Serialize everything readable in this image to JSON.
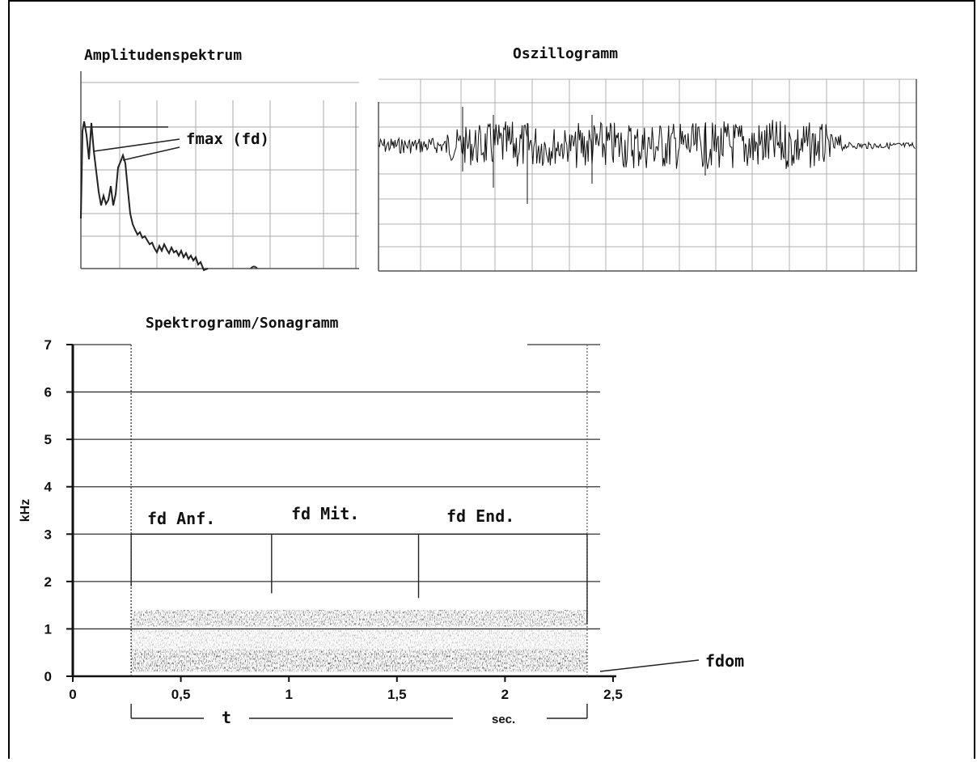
{
  "panels": {
    "amplitude_title": "Amplitudenspektrum",
    "oscillogram_title": "Oszillogramm",
    "spectrogram_title": "Spektrogramm/Sonagramm"
  },
  "annotations": {
    "fmax": "fmax (fd)",
    "fd_start": "fd Anf.",
    "fd_mid": "fd Mit.",
    "fd_end": "fd End.",
    "fdom": "fdom",
    "time_symbol": "t",
    "time_unit": "sec."
  },
  "chart_data": {
    "type": "heatmap",
    "title": "Spektrogramm/Sonagramm",
    "ylabel": "kHz",
    "xlabel": "",
    "ylim": [
      0,
      7
    ],
    "xlim": [
      0,
      2.5
    ],
    "y_ticks": [
      "0",
      "1",
      "2",
      "3",
      "4",
      "5",
      "6",
      "7"
    ],
    "x_ticks": [
      "0",
      "0,5",
      "1",
      "1,5",
      "2",
      "2,5"
    ],
    "y_tick_values": [
      0,
      1,
      2,
      3,
      4,
      5,
      6,
      7
    ],
    "x_tick_values": [
      0,
      0.5,
      1,
      1.5,
      2,
      2.5
    ],
    "grid": true,
    "call_start_s": 0.27,
    "call_end_s": 2.38,
    "measure_times_s": [
      0.27,
      0.92,
      1.6,
      2.38
    ],
    "bands_khz": [
      [
        0.1,
        0.55
      ],
      [
        1.05,
        1.4
      ]
    ]
  }
}
